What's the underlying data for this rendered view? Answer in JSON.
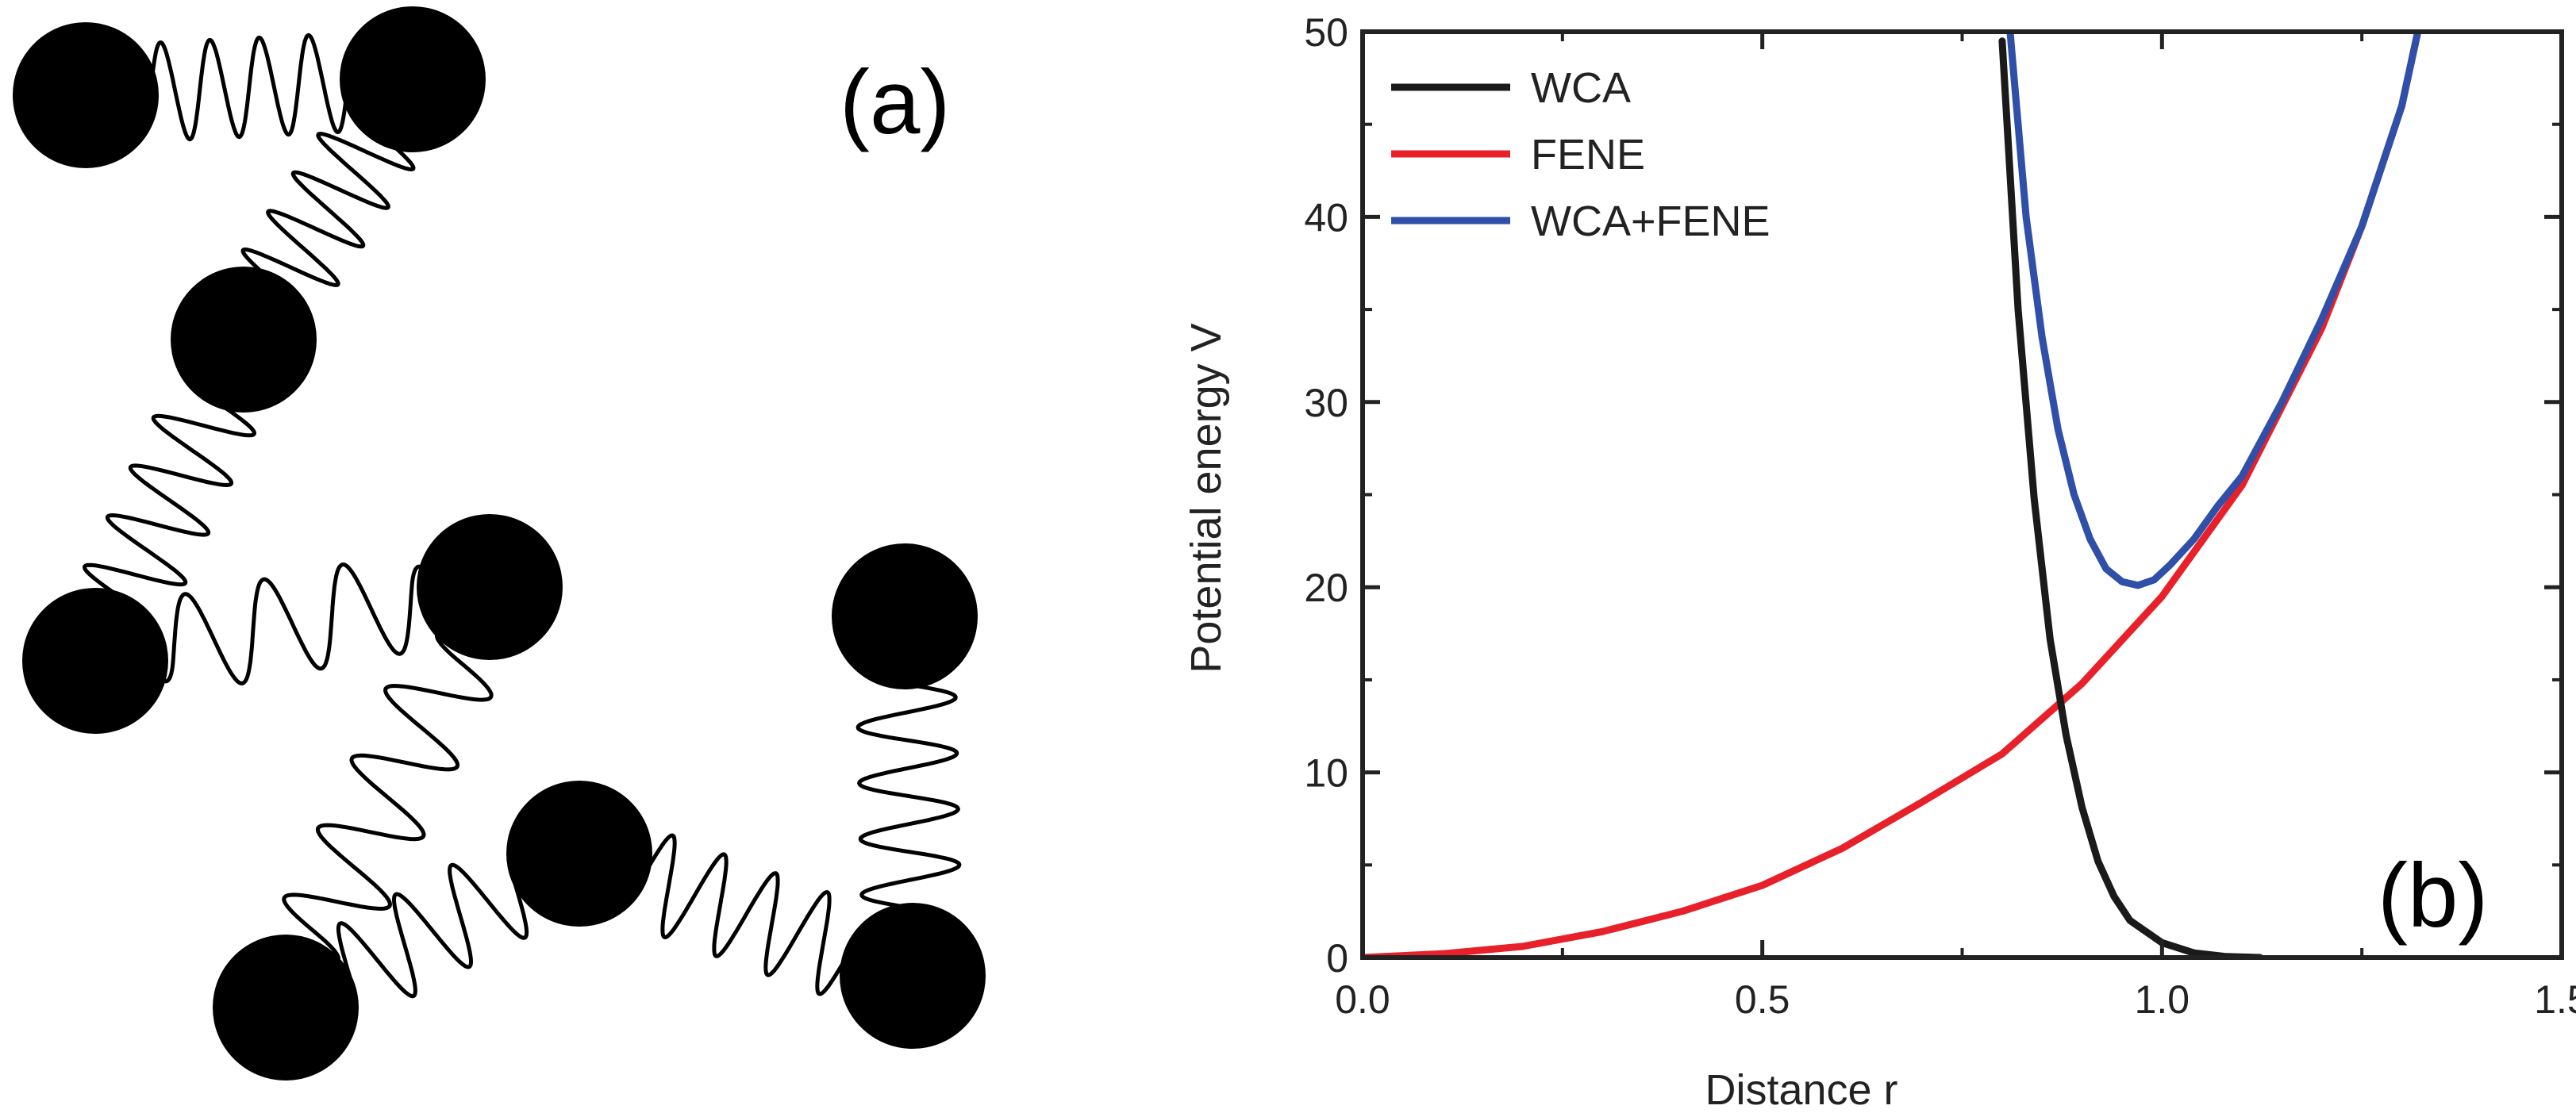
{
  "panels": {
    "a": {
      "label": "(a)"
    },
    "b": {
      "label": "(b)"
    }
  },
  "colors": {
    "wca": "#1a1a1a",
    "fene": "#e8202a",
    "wca_fene": "#2f4fa8",
    "bead": "#000000",
    "spring": "#000000"
  },
  "chart_data": {
    "type": "line",
    "title": "",
    "xlabel": "Distance r",
    "ylabel": "Potential energy V",
    "xlim": [
      0.0,
      1.5
    ],
    "ylim": [
      0,
      50
    ],
    "xticks": [
      "0.0",
      "0.5",
      "1.0",
      "1.5"
    ],
    "yticks": [
      "0",
      "10",
      "20",
      "30",
      "40",
      "50"
    ],
    "legend_position": "top-left",
    "series": [
      {
        "name": "WCA",
        "color": "#1a1a1a",
        "x": [
          0.8,
          0.82,
          0.84,
          0.86,
          0.88,
          0.9,
          0.92,
          0.94,
          0.96,
          1.0,
          1.04,
          1.08,
          1.1225
        ],
        "y": [
          49.5,
          35.0,
          24.8,
          17.2,
          12.0,
          8.1,
          5.2,
          3.3,
          2.0,
          0.8,
          0.25,
          0.05,
          0.0
        ]
      },
      {
        "name": "FENE",
        "color": "#e8202a",
        "x": [
          0.0,
          0.1,
          0.2,
          0.3,
          0.4,
          0.5,
          0.6,
          0.7,
          0.8,
          0.9,
          1.0,
          1.1,
          1.2,
          1.25,
          1.3,
          1.32
        ],
        "y": [
          0.0,
          0.2,
          0.6,
          1.4,
          2.5,
          3.9,
          5.9,
          8.4,
          11.0,
          14.8,
          19.5,
          25.5,
          34.0,
          39.5,
          46.0,
          50.0
        ]
      },
      {
        "name": "WCA+FENE",
        "color": "#2f4fa8",
        "x": [
          0.81,
          0.83,
          0.85,
          0.87,
          0.89,
          0.91,
          0.93,
          0.95,
          0.97,
          0.99,
          1.01,
          1.04,
          1.07,
          1.1,
          1.15,
          1.2,
          1.25,
          1.3,
          1.32
        ],
        "y": [
          50.0,
          40.0,
          33.5,
          28.5,
          25.0,
          22.6,
          21.0,
          20.3,
          20.1,
          20.4,
          21.2,
          22.6,
          24.4,
          26.0,
          30.0,
          34.5,
          39.5,
          46.0,
          50.0
        ]
      }
    ]
  }
}
